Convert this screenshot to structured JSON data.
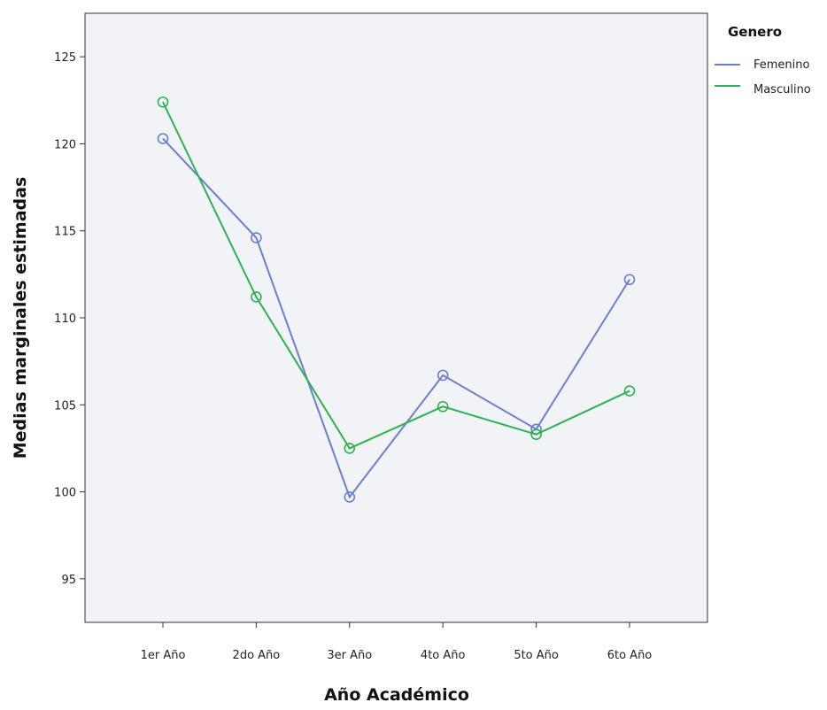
{
  "chart_data": {
    "type": "line",
    "categories": [
      "1er Año",
      "2do Año",
      "3er Año",
      "4to Año",
      "5to Año",
      "6to Año"
    ],
    "xlabel": "Año Académico",
    "ylabel": "Medias marginales estimadas",
    "ylim": [
      92.5,
      127.5
    ],
    "yticks": [
      95,
      100,
      105,
      110,
      115,
      120,
      125
    ],
    "grid": false,
    "legend": {
      "title": "Genero",
      "position": "right"
    },
    "series": [
      {
        "name": "Femenino",
        "color": "#6b7fd1",
        "values": [
          120.3,
          114.6,
          99.7,
          106.7,
          103.6,
          112.2
        ]
      },
      {
        "name": "Masculino",
        "color": "#2db34f",
        "values": [
          122.4,
          111.2,
          102.5,
          104.9,
          103.3,
          105.8
        ]
      }
    ]
  }
}
